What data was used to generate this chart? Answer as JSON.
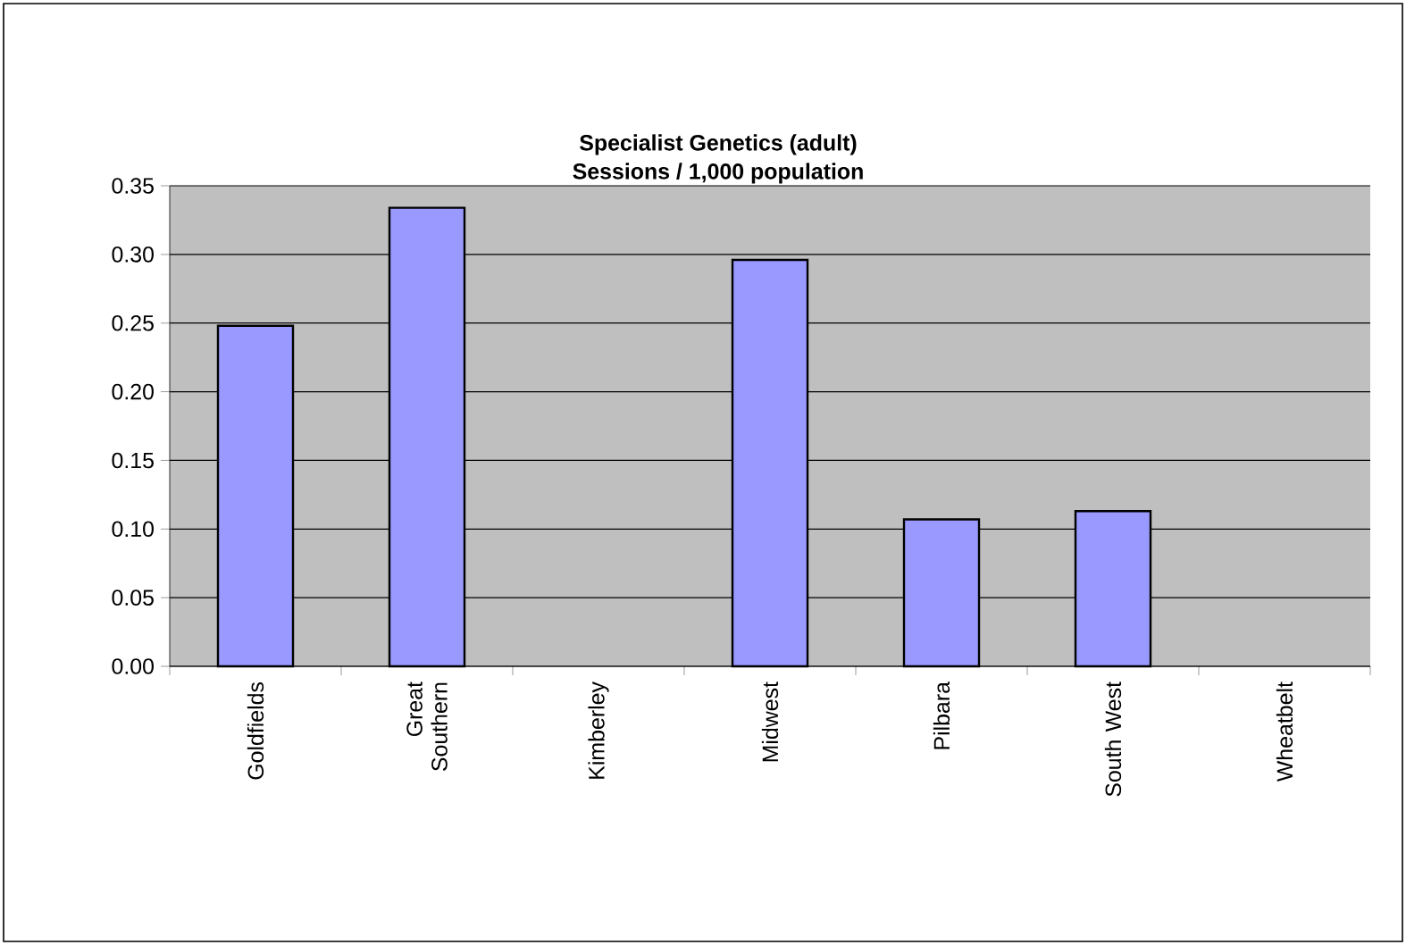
{
  "chart_data": {
    "type": "bar",
    "title": "Specialist Genetics (adult)",
    "subtitle": "Sessions / 1,000 population",
    "categories": [
      "Goldfields",
      "Great Southern",
      "Kimberley",
      "Midwest",
      "Pilbara",
      "South West",
      "Wheatbelt"
    ],
    "values": [
      0.248,
      0.334,
      null,
      0.296,
      0.107,
      0.113,
      null
    ],
    "color": "#9999ff",
    "ylim": [
      0,
      0.35
    ],
    "yticks": [
      {
        "value": 0,
        "label": "0.00"
      },
      {
        "value": 0.05,
        "label": "0.05"
      },
      {
        "value": 0.1,
        "label": "0.10"
      },
      {
        "value": 0.15,
        "label": "0.15"
      },
      {
        "value": 0.2,
        "label": "0.20"
      },
      {
        "value": 0.25,
        "label": "0.25"
      },
      {
        "value": 0.3,
        "label": "0.30"
      },
      {
        "value": 0.35,
        "label": "0.35"
      }
    ],
    "grid": "y"
  }
}
